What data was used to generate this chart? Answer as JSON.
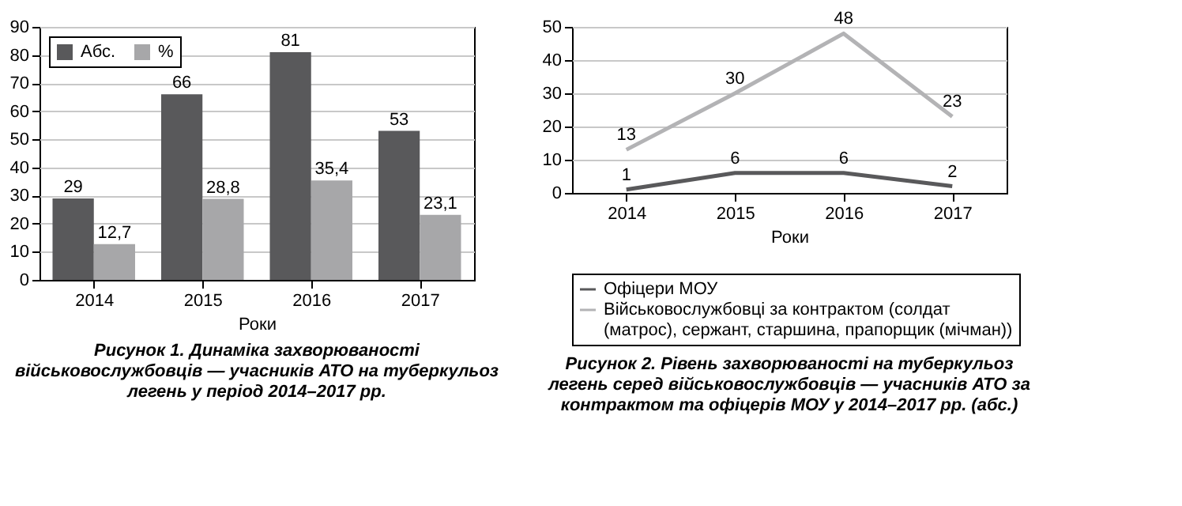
{
  "chart_data": [
    {
      "type": "bar",
      "title": "Рисунок 1. Динаміка захворюваності військовослужбовців — учасників АТО на туберкульоз легень у період 2014–2017 рр.",
      "xlabel": "Роки",
      "categories": [
        "2014",
        "2015",
        "2016",
        "2017"
      ],
      "series": [
        {
          "name": "Абс.",
          "color": "#59595b",
          "values": [
            29,
            66,
            81,
            53
          ]
        },
        {
          "name": "%",
          "color": "#a7a7a9",
          "values": [
            12.7,
            28.8,
            35.4,
            23.1
          ]
        }
      ],
      "value_labels": [
        [
          "29",
          "66",
          "81",
          "53"
        ],
        [
          "12,7",
          "28,8",
          "35,4",
          "23,1"
        ]
      ],
      "ylim": [
        0,
        90
      ],
      "yticks": [
        0,
        10,
        20,
        30,
        40,
        50,
        60,
        70,
        80,
        90
      ],
      "grid": "y",
      "legend": "top left"
    },
    {
      "type": "line",
      "title": "Рисунок 2. Рівень захворюваності на туберкульоз легень серед військовослужбовців — учасників АТО за контрактом та офіцерів МОУ у 2014–2017 рр. (абс.)",
      "xlabel": "Роки",
      "categories": [
        "2014",
        "2015",
        "2016",
        "2017"
      ],
      "series": [
        {
          "name": "Офіцери МОУ",
          "color": "#59595b",
          "values": [
            1,
            6,
            6,
            2
          ]
        },
        {
          "name": "Військовослужбовці за контрактом (солдат (матрос), сержант, старшина, прапорщик (мічман))",
          "color": "#b3b3b5",
          "values": [
            13,
            30,
            48,
            23
          ]
        }
      ],
      "data_labels": true,
      "ylim": [
        0,
        50
      ],
      "yticks": [
        0,
        10,
        20,
        30,
        40,
        50
      ],
      "grid": "y",
      "legend": "bottom",
      "marker": "none",
      "line_style": "solid"
    }
  ]
}
